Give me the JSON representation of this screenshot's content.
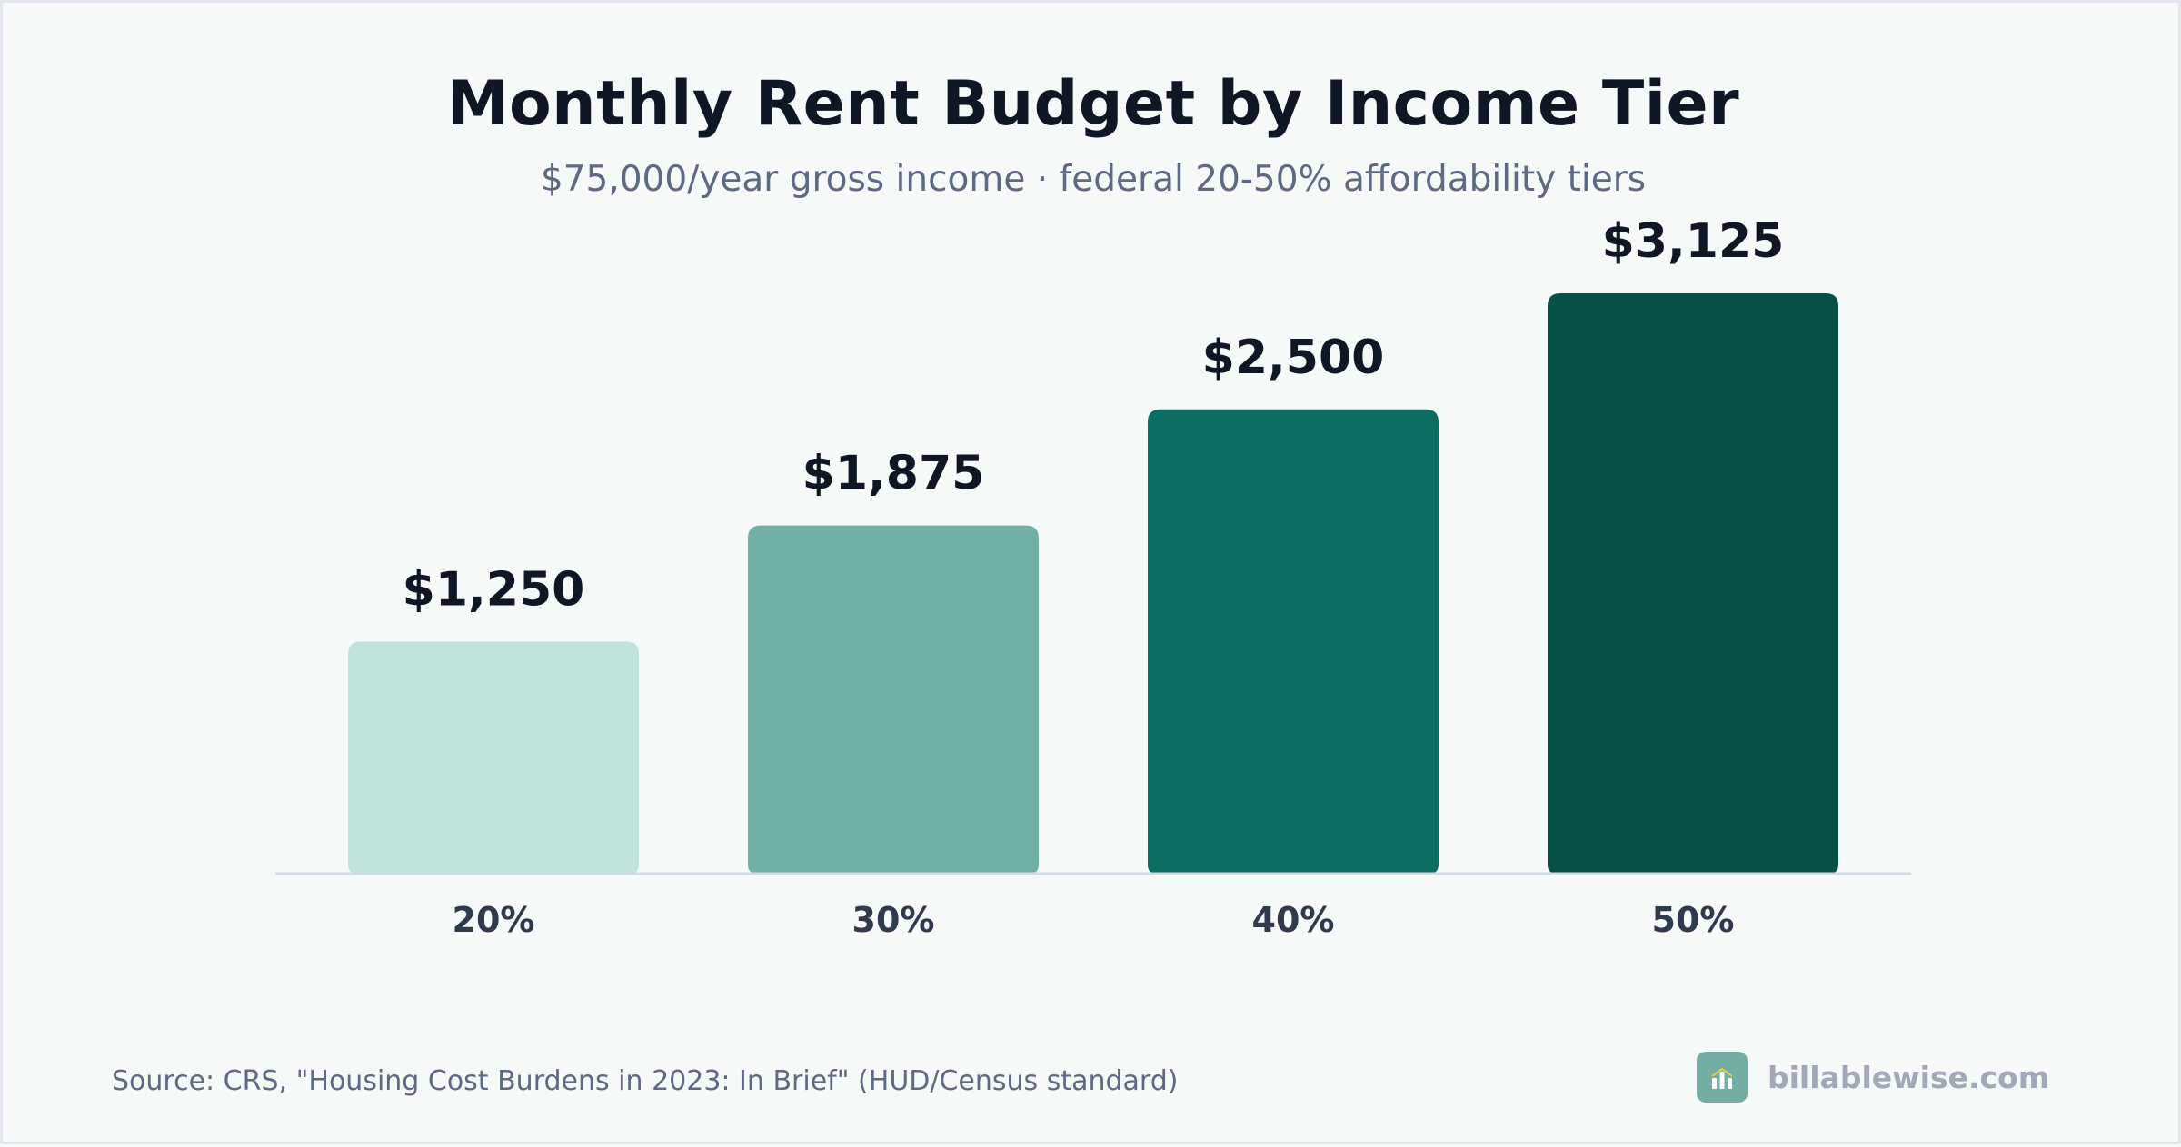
{
  "chart_data": {
    "type": "bar",
    "title": "Monthly Rent Budget by Income Tier",
    "subtitle": "$75,000/year gross income · federal 20-50% affordability tiers",
    "categories": [
      "20%",
      "30%",
      "40%",
      "50%"
    ],
    "values": [
      1250,
      1875,
      2500,
      3125
    ],
    "value_labels": [
      "$1,250",
      "$1,875",
      "$2,500",
      "$3,125"
    ],
    "colors": [
      "#c0e3dc",
      "#70b0a5",
      "#0c6e62",
      "#075046"
    ],
    "ylim": [
      0,
      3125
    ],
    "xlabel": "",
    "ylabel": "",
    "grid": false
  },
  "footer": {
    "source": "Source: CRS, \"Housing Cost Burdens in 2023: In Brief\" (HUD/Census standard)",
    "brand": "billablewise.com",
    "brand_icon": "bar-chart-logo-icon"
  }
}
